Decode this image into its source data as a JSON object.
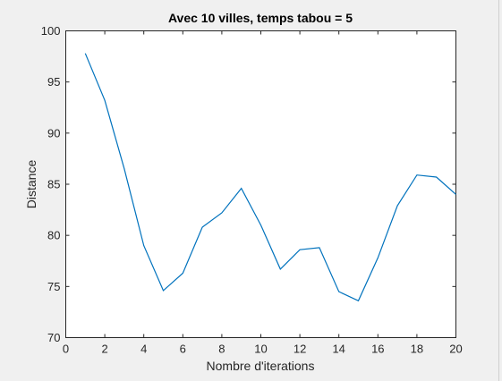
{
  "figure": {
    "background": "#f0f0f0"
  },
  "chart_data": {
    "type": "line",
    "title": "Avec 10 villes, temps tabou = 5",
    "xlabel": "Nombre d'iterations",
    "ylabel": "Distance",
    "xlim": [
      0,
      20
    ],
    "ylim": [
      70,
      100
    ],
    "xticks": [
      0,
      2,
      4,
      6,
      8,
      10,
      12,
      14,
      16,
      18,
      20
    ],
    "yticks": [
      70,
      75,
      80,
      85,
      90,
      95,
      100
    ],
    "grid": false,
    "series": [
      {
        "color": "#0072bd",
        "x": [
          1,
          2,
          3,
          4,
          5,
          6,
          7,
          8,
          9,
          10,
          11,
          12,
          13,
          14,
          15,
          16,
          17,
          18,
          19,
          20
        ],
        "values": [
          97.8,
          93.2,
          86.5,
          79.0,
          74.6,
          76.3,
          80.8,
          82.2,
          84.6,
          81.0,
          76.7,
          78.6,
          78.8,
          74.5,
          73.6,
          77.8,
          82.9,
          85.9,
          85.7,
          84.0
        ]
      }
    ]
  }
}
